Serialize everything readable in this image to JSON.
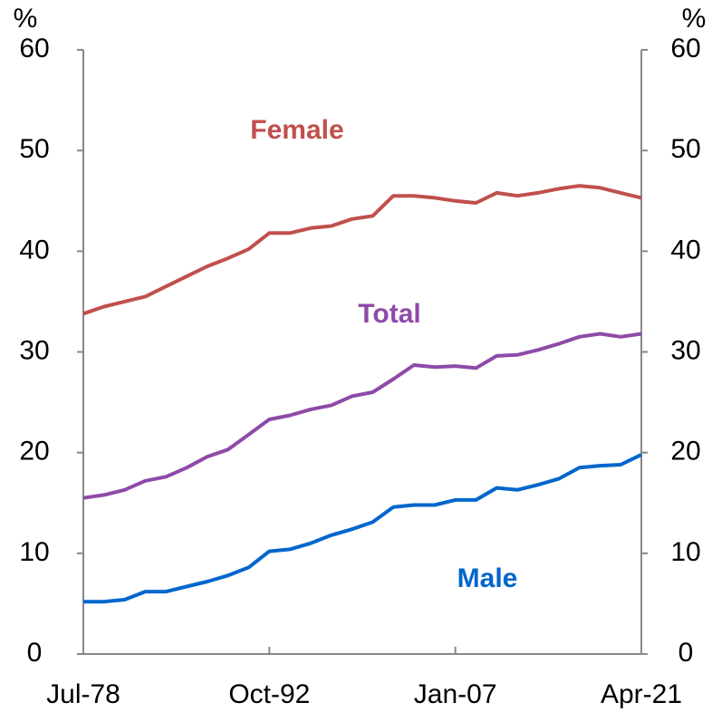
{
  "chart_data": {
    "type": "line",
    "y_unit": "%",
    "y2_unit": "%",
    "categories": [
      "Jul-78",
      null,
      null,
      null,
      null,
      null,
      null,
      null,
      null,
      "Oct-92",
      null,
      null,
      null,
      null,
      null,
      null,
      null,
      null,
      "Jan-07",
      null,
      null,
      null,
      null,
      null,
      null,
      null,
      null,
      "Apr-21"
    ],
    "series": [
      {
        "name": "Female",
        "color": "#c0504d",
        "values": [
          33.8,
          34.5,
          35,
          35.5,
          36.5,
          37.5,
          38.5,
          39.3,
          40.2,
          41.8,
          41.8,
          42.3,
          42.5,
          43.2,
          43.5,
          45.5,
          45.5,
          45.3,
          45,
          44.8,
          45.8,
          45.5,
          45.8,
          46.2,
          46.5,
          46.3,
          45.8,
          45.3
        ]
      },
      {
        "name": "Total",
        "color": "#8e4aa8",
        "values": [
          15.5,
          15.8,
          16.3,
          17.2,
          17.6,
          18.5,
          19.6,
          20.3,
          21.8,
          23.3,
          23.7,
          24.3,
          24.7,
          25.6,
          26,
          27.3,
          28.7,
          28.5,
          28.6,
          28.4,
          29.6,
          29.7,
          30.2,
          30.8,
          31.5,
          31.8,
          31.5,
          31.8
        ]
      },
      {
        "name": "Male",
        "color": "#0066cc",
        "values": [
          5.2,
          5.2,
          5.4,
          6.2,
          6.2,
          6.7,
          7.2,
          7.8,
          8.6,
          10.2,
          10.4,
          11,
          11.8,
          12.4,
          13.1,
          14.6,
          14.8,
          14.8,
          15.3,
          15.3,
          16.5,
          16.3,
          16.8,
          17.4,
          18.5,
          18.7,
          18.8,
          19.8
        ]
      }
    ],
    "ylim": [
      0,
      60
    ],
    "yticks": [
      0,
      10,
      20,
      30,
      40,
      50,
      60
    ],
    "y2lim": [
      0,
      60
    ],
    "y2ticks": [
      0,
      10,
      20,
      30,
      40,
      50,
      60
    ]
  }
}
